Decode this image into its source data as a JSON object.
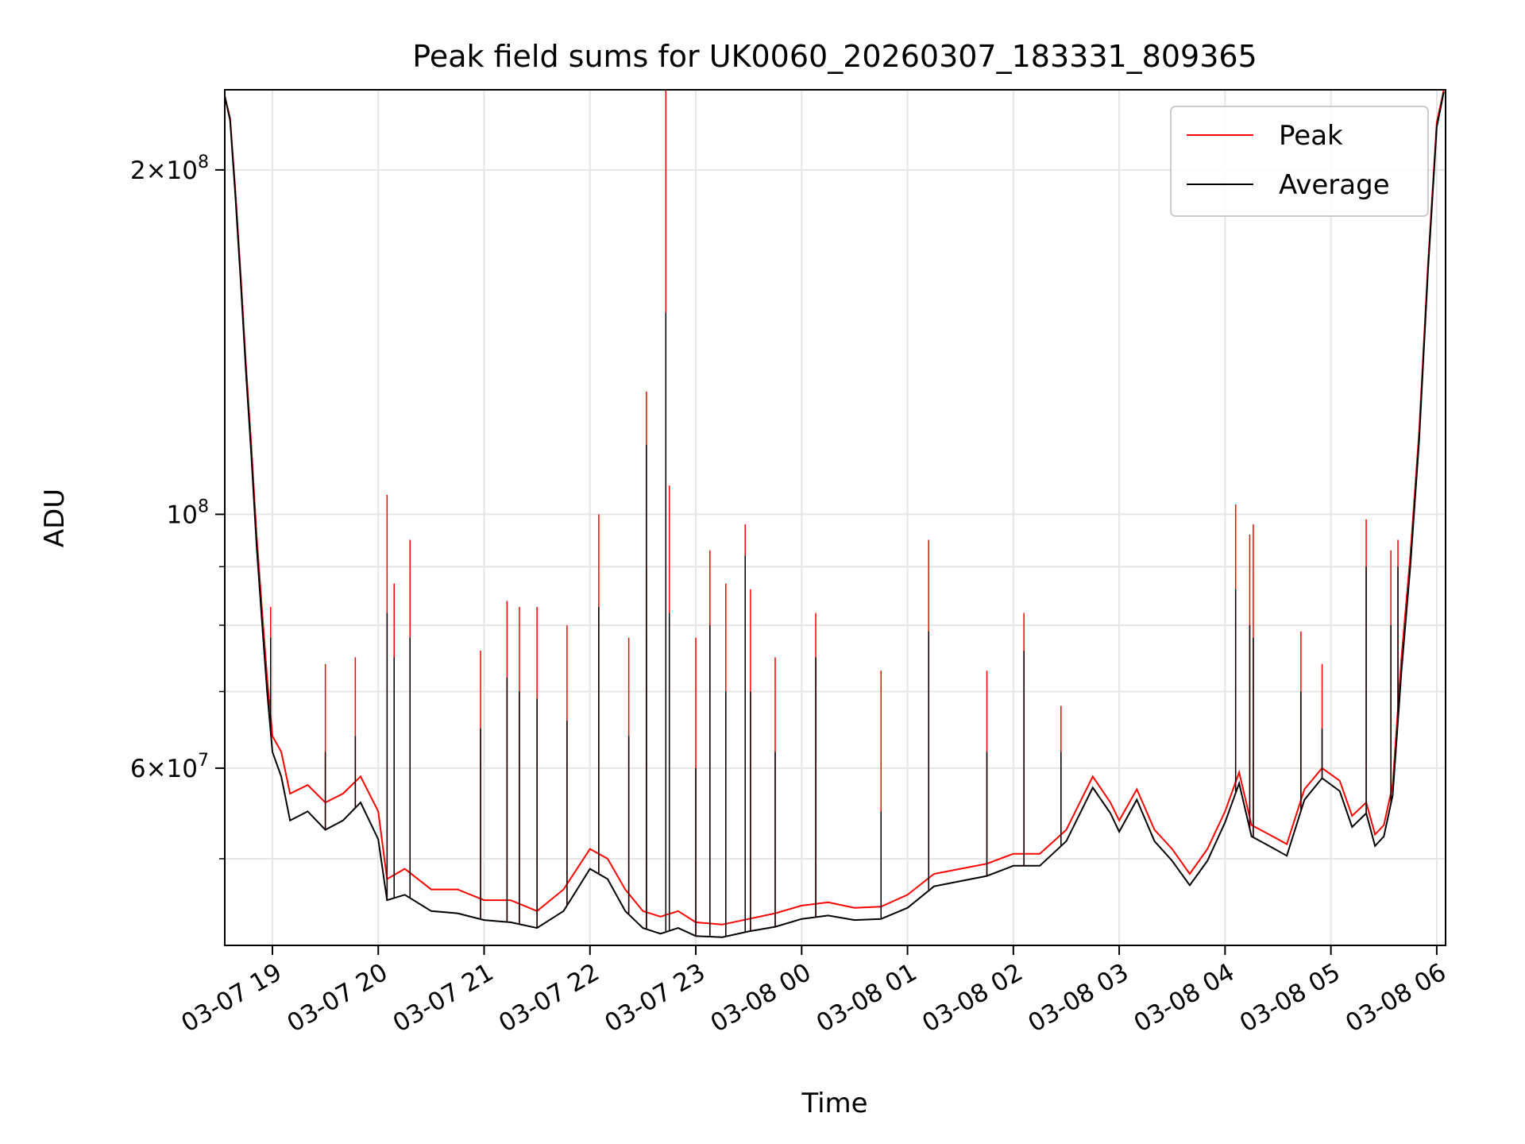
{
  "chart_data": {
    "type": "line",
    "title": "Peak field sums for UK0060_20260307_183331_809365",
    "xlabel": "Time",
    "ylabel": "ADU",
    "y_scale": "log",
    "ylim": [
      42000000,
      235000000
    ],
    "xlim": [
      "2026-03-07 18:33",
      "2026-03-08 06:05"
    ],
    "grid": true,
    "legend": {
      "placement": "top-right",
      "entries": [
        "Peak",
        "Average"
      ]
    },
    "x_ticks": [
      {
        "value": "2026-03-07 19:00",
        "label": "03-07 19"
      },
      {
        "value": "2026-03-07 20:00",
        "label": "03-07 20"
      },
      {
        "value": "2026-03-07 21:00",
        "label": "03-07 21"
      },
      {
        "value": "2026-03-07 22:00",
        "label": "03-07 22"
      },
      {
        "value": "2026-03-07 23:00",
        "label": "03-07 23"
      },
      {
        "value": "2026-03-08 00:00",
        "label": "03-08 00"
      },
      {
        "value": "2026-03-08 01:00",
        "label": "03-08 01"
      },
      {
        "value": "2026-03-08 02:00",
        "label": "03-08 02"
      },
      {
        "value": "2026-03-08 03:00",
        "label": "03-08 03"
      },
      {
        "value": "2026-03-08 04:00",
        "label": "03-08 04"
      },
      {
        "value": "2026-03-08 05:00",
        "label": "03-08 05"
      },
      {
        "value": "2026-03-08 06:00",
        "label": "03-08 06"
      }
    ],
    "y_major_ticks": [
      {
        "value": 200000000,
        "mant": "2",
        "exp": "8"
      },
      {
        "value": 100000000,
        "mant": "",
        "exp": "8"
      },
      {
        "value": 60000000,
        "mant": "6",
        "exp": "7"
      }
    ],
    "y_minor_ticks": [
      50000000,
      70000000,
      80000000,
      90000000
    ],
    "series": [
      {
        "name": "Peak",
        "color": "#ff0000",
        "points": [
          [
            "2026-03-07 18:33",
            232000000
          ],
          [
            "2026-03-07 18:36",
            222000000
          ],
          [
            "2026-03-07 18:39",
            192000000
          ],
          [
            "2026-03-07 18:42",
            162000000
          ],
          [
            "2026-03-07 18:45",
            135000000
          ],
          [
            "2026-03-07 18:48",
            115000000
          ],
          [
            "2026-03-07 18:51",
            96000000
          ],
          [
            "2026-03-07 18:54",
            83000000
          ],
          [
            "2026-03-07 18:57",
            72000000
          ],
          [
            "2026-03-07 19:00",
            64000000
          ],
          [
            "2026-03-07 19:05",
            62000000
          ],
          [
            "2026-03-07 19:10",
            57000000
          ],
          [
            "2026-03-07 19:20",
            58000000
          ],
          [
            "2026-03-07 19:30",
            56000000
          ],
          [
            "2026-03-07 19:40",
            57000000
          ],
          [
            "2026-03-07 19:50",
            59000000
          ],
          [
            "2026-03-07 20:00",
            55000000
          ],
          [
            "2026-03-07 20:05",
            48000000
          ],
          [
            "2026-03-07 20:15",
            49000000
          ],
          [
            "2026-03-07 20:30",
            47000000
          ],
          [
            "2026-03-07 20:45",
            47000000
          ],
          [
            "2026-03-07 21:00",
            46000000
          ],
          [
            "2026-03-07 21:15",
            46000000
          ],
          [
            "2026-03-07 21:30",
            45000000
          ],
          [
            "2026-03-07 21:45",
            47000000
          ],
          [
            "2026-03-07 22:00",
            51000000
          ],
          [
            "2026-03-07 22:10",
            50000000
          ],
          [
            "2026-03-07 22:20",
            47000000
          ],
          [
            "2026-03-07 22:30",
            45000000
          ],
          [
            "2026-03-07 22:40",
            44500000
          ],
          [
            "2026-03-07 22:50",
            45000000
          ],
          [
            "2026-03-07 23:00",
            44000000
          ],
          [
            "2026-03-07 23:15",
            43800000
          ],
          [
            "2026-03-07 23:30",
            44300000
          ],
          [
            "2026-03-07 23:45",
            44800000
          ],
          [
            "2026-03-08 00:00",
            45500000
          ],
          [
            "2026-03-08 00:15",
            45800000
          ],
          [
            "2026-03-08 00:30",
            45300000
          ],
          [
            "2026-03-08 00:45",
            45400000
          ],
          [
            "2026-03-08 01:00",
            46500000
          ],
          [
            "2026-03-08 01:15",
            48500000
          ],
          [
            "2026-03-08 01:30",
            49000000
          ],
          [
            "2026-03-08 01:45",
            49500000
          ],
          [
            "2026-03-08 02:00",
            50500000
          ],
          [
            "2026-03-08 02:15",
            50500000
          ],
          [
            "2026-03-08 02:30",
            53000000
          ],
          [
            "2026-03-08 02:45",
            59000000
          ],
          [
            "2026-03-08 02:55",
            56000000
          ],
          [
            "2026-03-08 03:00",
            54000000
          ],
          [
            "2026-03-08 03:10",
            57500000
          ],
          [
            "2026-03-08 03:20",
            53000000
          ],
          [
            "2026-03-08 03:30",
            51000000
          ],
          [
            "2026-03-08 03:40",
            48500000
          ],
          [
            "2026-03-08 03:50",
            51000000
          ],
          [
            "2026-03-08 04:00",
            55000000
          ],
          [
            "2026-03-08 04:08",
            59500000
          ],
          [
            "2026-03-08 04:15",
            53500000
          ],
          [
            "2026-03-08 04:25",
            52500000
          ],
          [
            "2026-03-08 04:35",
            51500000
          ],
          [
            "2026-03-08 04:45",
            57500000
          ],
          [
            "2026-03-08 04:55",
            60000000
          ],
          [
            "2026-03-08 05:05",
            58500000
          ],
          [
            "2026-03-08 05:12",
            54500000
          ],
          [
            "2026-03-08 05:20",
            56000000
          ],
          [
            "2026-03-08 05:25",
            52500000
          ],
          [
            "2026-03-08 05:30",
            53500000
          ],
          [
            "2026-03-08 05:35",
            58000000
          ],
          [
            "2026-03-08 05:40",
            75000000
          ],
          [
            "2026-03-08 05:45",
            92000000
          ],
          [
            "2026-03-08 05:50",
            118000000
          ],
          [
            "2026-03-08 05:55",
            165000000
          ],
          [
            "2026-03-08 06:00",
            220000000
          ],
          [
            "2026-03-08 06:04",
            235000000
          ]
        ]
      },
      {
        "name": "Average",
        "color": "#000000",
        "points": [
          [
            "2026-03-07 18:33",
            232000000
          ],
          [
            "2026-03-07 18:36",
            221000000
          ],
          [
            "2026-03-07 18:39",
            190000000
          ],
          [
            "2026-03-07 18:42",
            160000000
          ],
          [
            "2026-03-07 18:45",
            133000000
          ],
          [
            "2026-03-07 18:48",
            113000000
          ],
          [
            "2026-03-07 18:51",
            94000000
          ],
          [
            "2026-03-07 18:54",
            81000000
          ],
          [
            "2026-03-07 18:57",
            70000000
          ],
          [
            "2026-03-07 19:00",
            62000000
          ],
          [
            "2026-03-07 19:05",
            59000000
          ],
          [
            "2026-03-07 19:10",
            54000000
          ],
          [
            "2026-03-07 19:20",
            55000000
          ],
          [
            "2026-03-07 19:30",
            53000000
          ],
          [
            "2026-03-07 19:40",
            54000000
          ],
          [
            "2026-03-07 19:50",
            56000000
          ],
          [
            "2026-03-07 20:00",
            52000000
          ],
          [
            "2026-03-07 20:05",
            46000000
          ],
          [
            "2026-03-07 20:15",
            46500000
          ],
          [
            "2026-03-07 20:30",
            45000000
          ],
          [
            "2026-03-07 20:45",
            44800000
          ],
          [
            "2026-03-07 21:00",
            44200000
          ],
          [
            "2026-03-07 21:15",
            44000000
          ],
          [
            "2026-03-07 21:30",
            43500000
          ],
          [
            "2026-03-07 21:45",
            45000000
          ],
          [
            "2026-03-07 22:00",
            49000000
          ],
          [
            "2026-03-07 22:10",
            48000000
          ],
          [
            "2026-03-07 22:20",
            45000000
          ],
          [
            "2026-03-07 22:30",
            43500000
          ],
          [
            "2026-03-07 22:40",
            43000000
          ],
          [
            "2026-03-07 22:50",
            43500000
          ],
          [
            "2026-03-07 23:00",
            42800000
          ],
          [
            "2026-03-07 23:15",
            42700000
          ],
          [
            "2026-03-07 23:30",
            43200000
          ],
          [
            "2026-03-07 23:45",
            43600000
          ],
          [
            "2026-03-08 00:00",
            44300000
          ],
          [
            "2026-03-08 00:15",
            44600000
          ],
          [
            "2026-03-08 00:30",
            44200000
          ],
          [
            "2026-03-08 00:45",
            44300000
          ],
          [
            "2026-03-08 01:00",
            45300000
          ],
          [
            "2026-03-08 01:15",
            47300000
          ],
          [
            "2026-03-08 01:30",
            47800000
          ],
          [
            "2026-03-08 01:45",
            48300000
          ],
          [
            "2026-03-08 02:00",
            49300000
          ],
          [
            "2026-03-08 02:15",
            49300000
          ],
          [
            "2026-03-08 02:30",
            51800000
          ],
          [
            "2026-03-08 02:45",
            57700000
          ],
          [
            "2026-03-08 02:55",
            54800000
          ],
          [
            "2026-03-08 03:00",
            52800000
          ],
          [
            "2026-03-08 03:10",
            56300000
          ],
          [
            "2026-03-08 03:20",
            51800000
          ],
          [
            "2026-03-08 03:30",
            49800000
          ],
          [
            "2026-03-08 03:40",
            47400000
          ],
          [
            "2026-03-08 03:50",
            49800000
          ],
          [
            "2026-03-08 04:00",
            53800000
          ],
          [
            "2026-03-08 04:08",
            58200000
          ],
          [
            "2026-03-08 04:15",
            52300000
          ],
          [
            "2026-03-08 04:25",
            51300000
          ],
          [
            "2026-03-08 04:35",
            50300000
          ],
          [
            "2026-03-08 04:45",
            56300000
          ],
          [
            "2026-03-08 04:55",
            58800000
          ],
          [
            "2026-03-08 05:05",
            57300000
          ],
          [
            "2026-03-08 05:12",
            53300000
          ],
          [
            "2026-03-08 05:20",
            54800000
          ],
          [
            "2026-03-08 05:25",
            51300000
          ],
          [
            "2026-03-08 05:30",
            52300000
          ],
          [
            "2026-03-08 05:35",
            56800000
          ],
          [
            "2026-03-08 05:40",
            73000000
          ],
          [
            "2026-03-08 05:45",
            90000000
          ],
          [
            "2026-03-08 05:50",
            116000000
          ],
          [
            "2026-03-08 05:55",
            163000000
          ],
          [
            "2026-03-08 06:00",
            218000000
          ],
          [
            "2026-03-08 06:04",
            234000000
          ]
        ]
      }
    ],
    "spikes": [
      {
        "time": "2026-03-07 18:59",
        "peak": 83000000,
        "average": 78000000
      },
      {
        "time": "2026-03-07 19:30",
        "peak": 74000000,
        "average": 62000000
      },
      {
        "time": "2026-03-07 19:47",
        "peak": 75000000,
        "average": 64000000
      },
      {
        "time": "2026-03-07 20:05",
        "peak": 104000000,
        "average": 82000000
      },
      {
        "time": "2026-03-07 20:09",
        "peak": 87000000,
        "average": 75000000
      },
      {
        "time": "2026-03-07 20:18",
        "peak": 95000000,
        "average": 78000000
      },
      {
        "time": "2026-03-07 20:58",
        "peak": 76000000,
        "average": 65000000
      },
      {
        "time": "2026-03-07 21:13",
        "peak": 84000000,
        "average": 72000000
      },
      {
        "time": "2026-03-07 21:20",
        "peak": 83000000,
        "average": 70000000
      },
      {
        "time": "2026-03-07 21:30",
        "peak": 83000000,
        "average": 69000000
      },
      {
        "time": "2026-03-07 21:47",
        "peak": 80000000,
        "average": 66000000
      },
      {
        "time": "2026-03-07 22:05",
        "peak": 100000000,
        "average": 83000000
      },
      {
        "time": "2026-03-07 22:22",
        "peak": 78000000,
        "average": 64000000
      },
      {
        "time": "2026-03-07 22:32",
        "peak": 90000000,
        "average": 78000000
      },
      {
        "time": "2026-03-07 22:32",
        "peak": 128000000,
        "average": 115000000
      },
      {
        "time": "2026-03-07 22:43",
        "peak": 235000000,
        "average": 150000000
      },
      {
        "time": "2026-03-07 22:45",
        "peak": 106000000,
        "average": 82000000
      },
      {
        "time": "2026-03-07 23:00",
        "peak": 78000000,
        "average": 60000000
      },
      {
        "time": "2026-03-07 23:08",
        "peak": 93000000,
        "average": 80000000
      },
      {
        "time": "2026-03-07 23:17",
        "peak": 87000000,
        "average": 70000000
      },
      {
        "time": "2026-03-07 23:28",
        "peak": 98000000,
        "average": 92000000
      },
      {
        "time": "2026-03-07 23:31",
        "peak": 86000000,
        "average": 70000000
      },
      {
        "time": "2026-03-07 23:45",
        "peak": 75000000,
        "average": 62000000
      },
      {
        "time": "2026-03-08 00:08",
        "peak": 82000000,
        "average": 75000000
      },
      {
        "time": "2026-03-08 00:45",
        "peak": 73000000,
        "average": 55000000
      },
      {
        "time": "2026-03-08 01:12",
        "peak": 95000000,
        "average": 79000000
      },
      {
        "time": "2026-03-08 01:45",
        "peak": 73000000,
        "average": 62000000
      },
      {
        "time": "2026-03-08 02:06",
        "peak": 82000000,
        "average": 76000000
      },
      {
        "time": "2026-03-08 02:27",
        "peak": 68000000,
        "average": 62000000
      },
      {
        "time": "2026-03-08 04:06",
        "peak": 102000000,
        "average": 86000000
      },
      {
        "time": "2026-03-08 04:14",
        "peak": 96000000,
        "average": 80000000
      },
      {
        "time": "2026-03-08 04:16",
        "peak": 98000000,
        "average": 78000000
      },
      {
        "time": "2026-03-08 04:43",
        "peak": 79000000,
        "average": 70000000
      },
      {
        "time": "2026-03-08 04:55",
        "peak": 74000000,
        "average": 65000000
      },
      {
        "time": "2026-03-08 05:20",
        "peak": 99000000,
        "average": 90000000
      },
      {
        "time": "2026-03-08 05:34",
        "peak": 93000000,
        "average": 80000000
      },
      {
        "time": "2026-03-08 05:38",
        "peak": 95000000,
        "average": 90000000
      }
    ]
  }
}
